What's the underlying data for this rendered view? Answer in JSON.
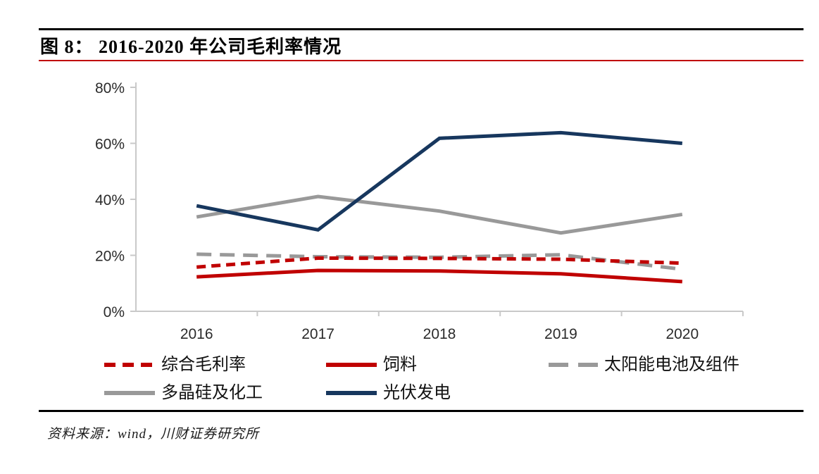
{
  "figure": {
    "title": "图 8： 2016-2020 年公司毛利率情况"
  },
  "chart_data": {
    "type": "line",
    "title": "2016-2020 年公司毛利率情况",
    "categories": [
      "2016",
      "2017",
      "2018",
      "2019",
      "2020"
    ],
    "series": [
      {
        "name": "综合毛利率",
        "color": "#c00000",
        "line_style": "dash-short",
        "values": [
          15.8,
          19.0,
          18.9,
          18.6,
          17.2
        ]
      },
      {
        "name": "饲料",
        "color": "#c00000",
        "line_style": "solid",
        "values": [
          12.3,
          14.6,
          14.4,
          13.4,
          10.6
        ]
      },
      {
        "name": "太阳能电池及组件",
        "color": "#999999",
        "line_style": "dash-long",
        "values": [
          20.4,
          19.5,
          19.3,
          20.2,
          15.0
        ]
      },
      {
        "name": "多晶硅及化工",
        "color": "#999999",
        "line_style": "solid",
        "values": [
          33.7,
          41.0,
          35.8,
          28.0,
          34.6
        ]
      },
      {
        "name": "光伏发电",
        "color": "#17375e",
        "line_style": "solid",
        "values": [
          37.7,
          29.1,
          61.8,
          63.8,
          60.0
        ]
      }
    ],
    "draw_order": [
      2,
      0,
      1,
      3,
      4
    ],
    "xlabel": "",
    "ylabel": "",
    "ylim": [
      0,
      80
    ],
    "yticks": [
      "0%",
      "20%",
      "40%",
      "60%",
      "80%"
    ],
    "ytick_values": [
      0,
      20,
      40,
      60,
      80
    ],
    "grid": false,
    "legend_position": "bottom",
    "legend_rows": [
      [
        "综合毛利率",
        "饲料",
        "太阳能电池及组件"
      ],
      [
        "多晶硅及化工",
        "光伏发电"
      ]
    ]
  },
  "footer": {
    "source": "资料来源：wind，川财证券研究所"
  },
  "colors": {
    "accent_red": "#c00000",
    "navy": "#17375e",
    "gray": "#999999",
    "axis": "#c9c9c9",
    "rule_black": "#000000"
  }
}
